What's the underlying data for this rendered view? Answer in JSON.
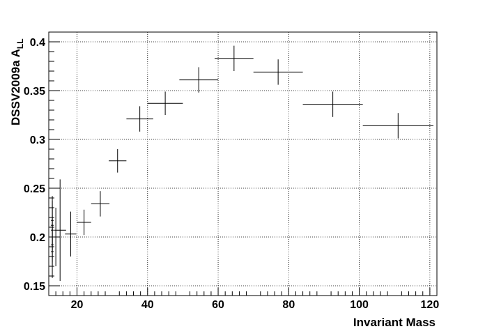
{
  "chart_data": {
    "type": "scatter",
    "title": "",
    "xlabel": "Invariant Mass",
    "ylabel_main": "DSSV2009a A",
    "ylabel_sub": "LL",
    "xlim": [
      12,
      122
    ],
    "ylim": [
      0.14,
      0.41
    ],
    "x_ticks": [
      20,
      40,
      60,
      80,
      100,
      120
    ],
    "x_tick_labels": [
      "20",
      "40",
      "60",
      "80",
      "100",
      "120"
    ],
    "y_ticks": [
      0.15,
      0.2,
      0.25,
      0.3,
      0.35,
      0.4
    ],
    "y_tick_labels": [
      "0.15",
      "0.2",
      "0.25",
      "0.3",
      "0.35",
      "0.4"
    ],
    "grid": true,
    "series": [
      {
        "points": [
          {
            "x": 13.0,
            "y": 0.17,
            "xerr": 0.4,
            "yerr": 0.012
          },
          {
            "x": 13.0,
            "y": 0.185,
            "xerr": 0.4,
            "yerr": 0.014
          },
          {
            "x": 13.0,
            "y": 0.192,
            "xerr": 0.4,
            "yerr": 0.018
          },
          {
            "x": 13.0,
            "y": 0.2,
            "xerr": 0.4,
            "yerr": 0.022
          },
          {
            "x": 13.0,
            "y": 0.207,
            "xerr": 0.4,
            "yerr": 0.025
          },
          {
            "x": 13.0,
            "y": 0.212,
            "xerr": 0.4,
            "yerr": 0.025
          },
          {
            "x": 13.0,
            "y": 0.217,
            "xerr": 0.4,
            "yerr": 0.025
          },
          {
            "x": 14.0,
            "y": 0.2,
            "xerr": 0.5,
            "yerr": 0.03
          },
          {
            "x": 15.2,
            "y": 0.207,
            "xerr": 1.7,
            "yerr": 0.052
          },
          {
            "x": 18.2,
            "y": 0.203,
            "xerr": 1.6,
            "yerr": 0.023
          },
          {
            "x": 22.0,
            "y": 0.215,
            "xerr": 2.0,
            "yerr": 0.013
          },
          {
            "x": 26.6,
            "y": 0.234,
            "xerr": 2.6,
            "yerr": 0.013
          },
          {
            "x": 31.5,
            "y": 0.278,
            "xerr": 2.5,
            "yerr": 0.012
          },
          {
            "x": 37.8,
            "y": 0.321,
            "xerr": 3.8,
            "yerr": 0.013
          },
          {
            "x": 45.0,
            "y": 0.337,
            "xerr": 5.0,
            "yerr": 0.012
          },
          {
            "x": 54.5,
            "y": 0.361,
            "xerr": 5.5,
            "yerr": 0.013
          },
          {
            "x": 64.5,
            "y": 0.383,
            "xerr": 5.5,
            "yerr": 0.013
          },
          {
            "x": 77.0,
            "y": 0.369,
            "xerr": 7.0,
            "yerr": 0.013
          },
          {
            "x": 92.5,
            "y": 0.336,
            "xerr": 8.5,
            "yerr": 0.013
          },
          {
            "x": 111.0,
            "y": 0.314,
            "xerr": 10.0,
            "yerr": 0.013
          }
        ]
      }
    ]
  }
}
